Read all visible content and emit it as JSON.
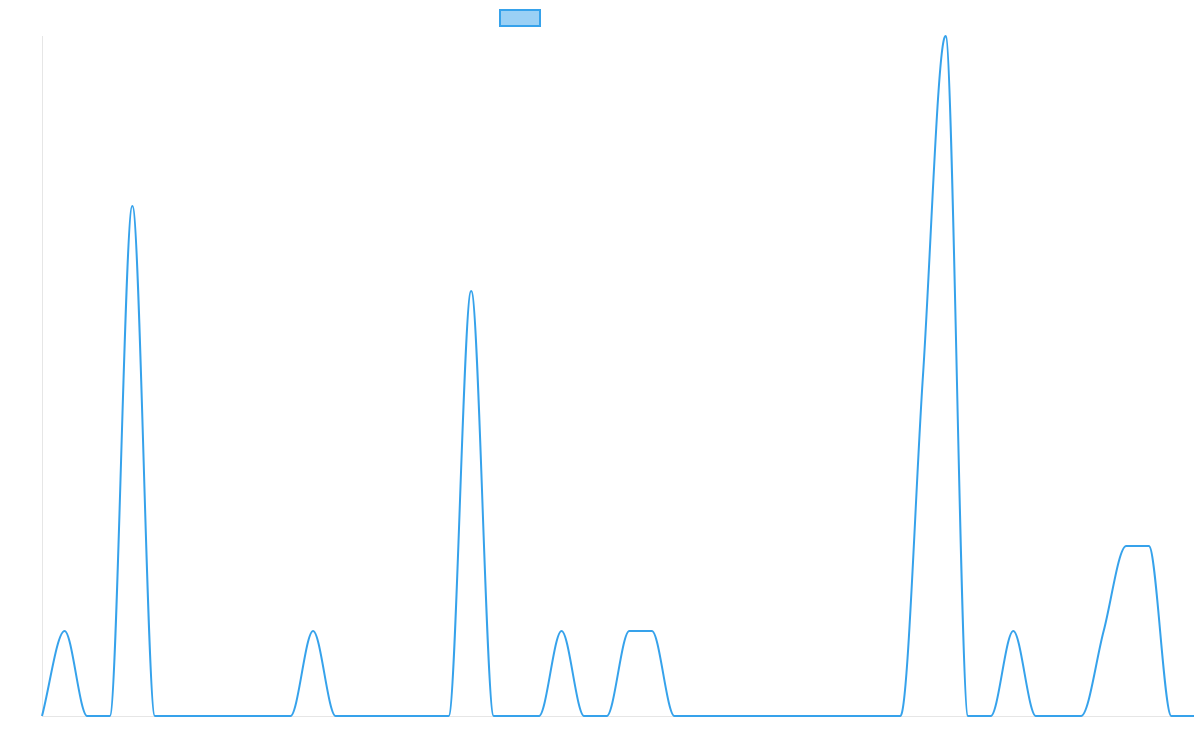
{
  "chart_data": {
    "type": "line",
    "title": "",
    "xlabel": "",
    "ylabel": "",
    "legend": {
      "placement": "top-center",
      "entries": [
        {
          "name": ""
        }
      ]
    },
    "grid": false,
    "smooth": true,
    "xlim": [
      0,
      51
    ],
    "ylim": [
      0,
      8
    ],
    "x": [
      0,
      1,
      2,
      3,
      4,
      5,
      6,
      7,
      8,
      9,
      10,
      11,
      12,
      13,
      14,
      15,
      16,
      17,
      18,
      19,
      20,
      21,
      22,
      23,
      24,
      25,
      26,
      27,
      28,
      29,
      30,
      31,
      32,
      33,
      34,
      35,
      36,
      37,
      38,
      39,
      40,
      41,
      42,
      43,
      44,
      45,
      46,
      47,
      48,
      49,
      50,
      51
    ],
    "series": [
      {
        "name": "",
        "color": "#36A2EB",
        "fill_color": "#9AD0F5",
        "values": [
          0,
          1,
          0,
          0,
          6,
          0,
          0,
          0,
          0,
          0,
          0,
          0,
          1,
          0,
          0,
          0,
          0,
          0,
          0,
          5,
          0,
          0,
          0,
          1,
          0,
          0,
          1,
          1,
          0,
          0,
          0,
          0,
          0,
          0,
          0,
          0,
          0,
          0,
          0,
          4,
          8,
          0,
          0,
          1,
          0,
          0,
          0,
          1,
          2,
          2,
          0,
          0
        ]
      }
    ]
  }
}
